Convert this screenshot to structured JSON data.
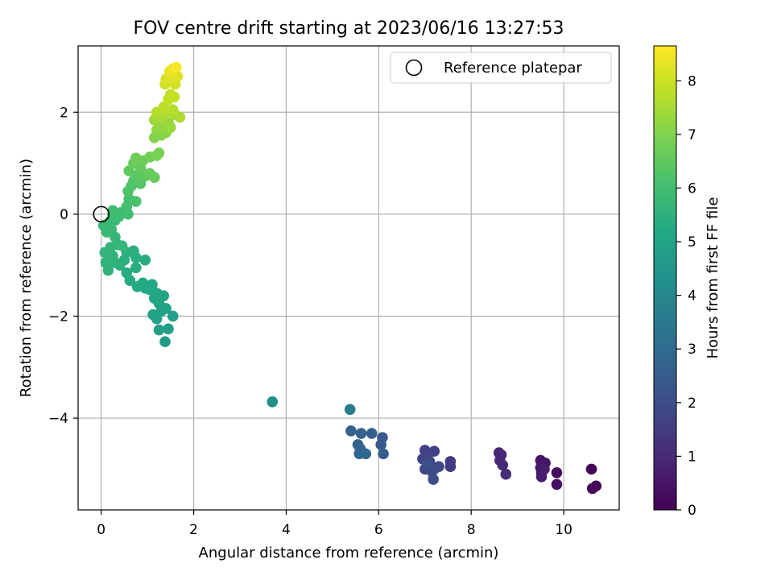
{
  "chart_data": {
    "type": "scatter",
    "title": "FOV centre drift starting at 2023/06/16 13:27:53",
    "xlabel": "Angular distance from reference (arcmin)",
    "ylabel": "Rotation from reference (arcmin)",
    "xlim": [
      -0.5,
      11.2
    ],
    "ylim": [
      -5.8,
      3.3
    ],
    "xticks": [
      "0",
      "2",
      "4",
      "6",
      "8",
      "10"
    ],
    "yticks": [
      "−4",
      "−2",
      "0",
      "2"
    ],
    "xtick_values": [
      0,
      2,
      4,
      6,
      8,
      10
    ],
    "ytick_values": [
      -4,
      -2,
      0,
      2
    ],
    "grid": true,
    "legend": {
      "position": "top-right",
      "entries": [
        "Reference platepar"
      ]
    },
    "reference_point": {
      "x": 0,
      "y": 0,
      "marker": "open-circle",
      "color": "#000000"
    },
    "colorbar": {
      "label": "Hours from first FF file",
      "colormap": "viridis",
      "range": [
        0,
        8.65
      ],
      "ticks": [
        "0",
        "1",
        "2",
        "3",
        "4",
        "5",
        "6",
        "7",
        "8"
      ],
      "tick_values": [
        0,
        1,
        2,
        3,
        4,
        5,
        6,
        7,
        8
      ]
    },
    "points": [
      {
        "x": 10.6,
        "y": -5.0,
        "c": 0.05
      },
      {
        "x": 10.7,
        "y": -5.33,
        "c": 0.1
      },
      {
        "x": 10.62,
        "y": -5.38,
        "c": 0.15
      },
      {
        "x": 9.85,
        "y": -5.07,
        "c": 0.3
      },
      {
        "x": 9.85,
        "y": -5.3,
        "c": 0.35
      },
      {
        "x": 9.5,
        "y": -4.83,
        "c": 0.45
      },
      {
        "x": 9.6,
        "y": -4.88,
        "c": 0.5
      },
      {
        "x": 9.5,
        "y": -4.97,
        "c": 0.55
      },
      {
        "x": 9.52,
        "y": -5.07,
        "c": 0.6
      },
      {
        "x": 9.52,
        "y": -5.15,
        "c": 0.65
      },
      {
        "x": 9.58,
        "y": -5.0,
        "c": 0.7
      },
      {
        "x": 8.6,
        "y": -4.68,
        "c": 0.9
      },
      {
        "x": 8.65,
        "y": -4.72,
        "c": 0.95
      },
      {
        "x": 8.62,
        "y": -4.83,
        "c": 1.0
      },
      {
        "x": 8.68,
        "y": -4.92,
        "c": 1.05
      },
      {
        "x": 8.75,
        "y": -5.1,
        "c": 1.1
      },
      {
        "x": 7.55,
        "y": -4.85,
        "c": 1.45
      },
      {
        "x": 7.55,
        "y": -4.95,
        "c": 1.5
      },
      {
        "x": 7.2,
        "y": -4.65,
        "c": 1.6
      },
      {
        "x": 7.0,
        "y": -4.63,
        "c": 1.65
      },
      {
        "x": 7.05,
        "y": -4.75,
        "c": 1.7
      },
      {
        "x": 6.95,
        "y": -4.8,
        "c": 1.75
      },
      {
        "x": 7.1,
        "y": -4.85,
        "c": 1.8
      },
      {
        "x": 7.3,
        "y": -4.95,
        "c": 1.85
      },
      {
        "x": 7.0,
        "y": -5.0,
        "c": 1.9
      },
      {
        "x": 7.15,
        "y": -5.05,
        "c": 1.95
      },
      {
        "x": 7.2,
        "y": -5.0,
        "c": 2.0
      },
      {
        "x": 7.18,
        "y": -5.2,
        "c": 2.05
      },
      {
        "x": 7.05,
        "y": -4.9,
        "c": 2.1
      },
      {
        "x": 6.08,
        "y": -4.38,
        "c": 2.4
      },
      {
        "x": 6.05,
        "y": -4.52,
        "c": 2.45
      },
      {
        "x": 6.1,
        "y": -4.7,
        "c": 2.5
      },
      {
        "x": 5.85,
        "y": -4.3,
        "c": 2.6
      },
      {
        "x": 5.62,
        "y": -4.3,
        "c": 2.65
      },
      {
        "x": 5.4,
        "y": -4.25,
        "c": 2.7
      },
      {
        "x": 5.55,
        "y": -4.52,
        "c": 2.75
      },
      {
        "x": 5.6,
        "y": -4.6,
        "c": 2.8
      },
      {
        "x": 5.58,
        "y": -4.7,
        "c": 2.85
      },
      {
        "x": 5.72,
        "y": -4.7,
        "c": 2.9
      },
      {
        "x": 5.38,
        "y": -3.83,
        "c": 3.55
      },
      {
        "x": 3.7,
        "y": -3.68,
        "c": 4.3
      },
      {
        "x": 1.38,
        "y": -2.5,
        "c": 4.75
      },
      {
        "x": 1.45,
        "y": -2.25,
        "c": 4.8
      },
      {
        "x": 1.25,
        "y": -2.27,
        "c": 4.85
      },
      {
        "x": 1.55,
        "y": -2.0,
        "c": 4.9
      },
      {
        "x": 1.2,
        "y": -2.05,
        "c": 4.92
      },
      {
        "x": 1.12,
        "y": -1.97,
        "c": 4.95
      },
      {
        "x": 1.3,
        "y": -1.9,
        "c": 4.98
      },
      {
        "x": 1.4,
        "y": -1.85,
        "c": 5.0
      },
      {
        "x": 1.25,
        "y": -1.75,
        "c": 5.05
      },
      {
        "x": 1.35,
        "y": -1.6,
        "c": 5.08
      },
      {
        "x": 1.15,
        "y": -1.65,
        "c": 5.1
      },
      {
        "x": 1.2,
        "y": -1.55,
        "c": 5.12
      },
      {
        "x": 1.05,
        "y": -1.48,
        "c": 5.15
      },
      {
        "x": 1.1,
        "y": -1.38,
        "c": 5.18
      },
      {
        "x": 0.95,
        "y": -1.45,
        "c": 5.2
      },
      {
        "x": 0.9,
        "y": -1.35,
        "c": 5.22
      },
      {
        "x": 0.78,
        "y": -1.42,
        "c": 5.25
      },
      {
        "x": 0.62,
        "y": -1.3,
        "c": 5.3
      },
      {
        "x": 0.55,
        "y": -1.15,
        "c": 5.33
      },
      {
        "x": 0.75,
        "y": -1.05,
        "c": 5.35
      },
      {
        "x": 0.95,
        "y": -0.9,
        "c": 5.38
      },
      {
        "x": 0.75,
        "y": -0.85,
        "c": 5.4
      },
      {
        "x": 0.7,
        "y": -0.72,
        "c": 5.43
      },
      {
        "x": 0.55,
        "y": -0.75,
        "c": 5.45
      },
      {
        "x": 0.5,
        "y": -0.9,
        "c": 5.48
      },
      {
        "x": 0.4,
        "y": -1.0,
        "c": 5.5
      },
      {
        "x": 0.3,
        "y": -0.95,
        "c": 5.52
      },
      {
        "x": 0.25,
        "y": -0.82,
        "c": 5.55
      },
      {
        "x": 0.15,
        "y": -1.1,
        "c": 5.58
      },
      {
        "x": 0.1,
        "y": -0.95,
        "c": 5.6
      },
      {
        "x": 0.08,
        "y": -0.75,
        "c": 5.62
      },
      {
        "x": 0.2,
        "y": -0.65,
        "c": 5.65
      },
      {
        "x": 0.35,
        "y": -0.6,
        "c": 5.68
      },
      {
        "x": 0.45,
        "y": -0.62,
        "c": 5.7
      },
      {
        "x": 0.3,
        "y": -0.45,
        "c": 5.72
      },
      {
        "x": 0.22,
        "y": -0.3,
        "c": 5.75
      },
      {
        "x": 0.12,
        "y": -0.35,
        "c": 5.78
      },
      {
        "x": 0.05,
        "y": -0.22,
        "c": 5.8
      },
      {
        "x": 0.18,
        "y": -0.15,
        "c": 5.82
      },
      {
        "x": 0.3,
        "y": -0.12,
        "c": 5.85
      },
      {
        "x": 0.25,
        "y": 0.0,
        "c": 5.88
      },
      {
        "x": 0.38,
        "y": -0.05,
        "c": 5.9
      },
      {
        "x": 0.25,
        "y": 0.07,
        "c": 5.92
      },
      {
        "x": 0.42,
        "y": 0.03,
        "c": 5.95
      },
      {
        "x": 0.58,
        "y": 0.0,
        "c": 6.0
      },
      {
        "x": 0.55,
        "y": 0.15,
        "c": 6.05
      },
      {
        "x": 0.6,
        "y": 0.3,
        "c": 6.1
      },
      {
        "x": 0.75,
        "y": 0.25,
        "c": 6.15
      },
      {
        "x": 0.58,
        "y": 0.45,
        "c": 6.2
      },
      {
        "x": 0.65,
        "y": 0.55,
        "c": 6.25
      },
      {
        "x": 0.7,
        "y": 0.65,
        "c": 6.3
      },
      {
        "x": 0.85,
        "y": 0.6,
        "c": 6.35
      },
      {
        "x": 0.75,
        "y": 0.75,
        "c": 6.4
      },
      {
        "x": 0.95,
        "y": 0.75,
        "c": 6.45
      },
      {
        "x": 0.6,
        "y": 0.85,
        "c": 6.5
      },
      {
        "x": 0.85,
        "y": 0.9,
        "c": 6.55
      },
      {
        "x": 1.05,
        "y": 0.8,
        "c": 6.6
      },
      {
        "x": 1.15,
        "y": 0.72,
        "c": 6.63
      },
      {
        "x": 0.7,
        "y": 1.0,
        "c": 6.65
      },
      {
        "x": 0.9,
        "y": 1.05,
        "c": 6.7
      },
      {
        "x": 0.75,
        "y": 1.1,
        "c": 6.75
      },
      {
        "x": 1.05,
        "y": 1.12,
        "c": 6.8
      },
      {
        "x": 1.2,
        "y": 1.15,
        "c": 6.85
      },
      {
        "x": 1.25,
        "y": 1.2,
        "c": 6.9
      },
      {
        "x": 1.15,
        "y": 1.5,
        "c": 7.0
      },
      {
        "x": 1.3,
        "y": 1.55,
        "c": 7.05
      },
      {
        "x": 1.4,
        "y": 1.6,
        "c": 7.1
      },
      {
        "x": 1.2,
        "y": 1.65,
        "c": 7.15
      },
      {
        "x": 1.35,
        "y": 1.7,
        "c": 7.2
      },
      {
        "x": 1.25,
        "y": 1.78,
        "c": 7.25
      },
      {
        "x": 1.45,
        "y": 1.8,
        "c": 7.3
      },
      {
        "x": 1.5,
        "y": 1.7,
        "c": 7.35
      },
      {
        "x": 1.15,
        "y": 1.85,
        "c": 7.4
      },
      {
        "x": 1.3,
        "y": 1.9,
        "c": 7.45
      },
      {
        "x": 1.6,
        "y": 1.95,
        "c": 7.5
      },
      {
        "x": 1.7,
        "y": 1.9,
        "c": 7.55
      },
      {
        "x": 1.4,
        "y": 2.0,
        "c": 7.6
      },
      {
        "x": 1.2,
        "y": 2.0,
        "c": 7.65
      },
      {
        "x": 1.55,
        "y": 2.05,
        "c": 7.7
      },
      {
        "x": 1.35,
        "y": 2.1,
        "c": 7.75
      },
      {
        "x": 1.45,
        "y": 2.25,
        "c": 7.8
      },
      {
        "x": 1.5,
        "y": 2.35,
        "c": 7.85
      },
      {
        "x": 1.58,
        "y": 2.3,
        "c": 7.9
      },
      {
        "x": 1.38,
        "y": 2.55,
        "c": 8.0
      },
      {
        "x": 1.5,
        "y": 2.6,
        "c": 8.05
      },
      {
        "x": 1.6,
        "y": 2.55,
        "c": 8.1
      },
      {
        "x": 1.4,
        "y": 2.65,
        "c": 8.15
      },
      {
        "x": 1.55,
        "y": 2.68,
        "c": 8.2
      },
      {
        "x": 1.65,
        "y": 2.7,
        "c": 8.25
      },
      {
        "x": 1.48,
        "y": 2.8,
        "c": 8.35
      },
      {
        "x": 1.55,
        "y": 2.85,
        "c": 8.45
      },
      {
        "x": 1.62,
        "y": 2.88,
        "c": 8.55
      }
    ]
  }
}
